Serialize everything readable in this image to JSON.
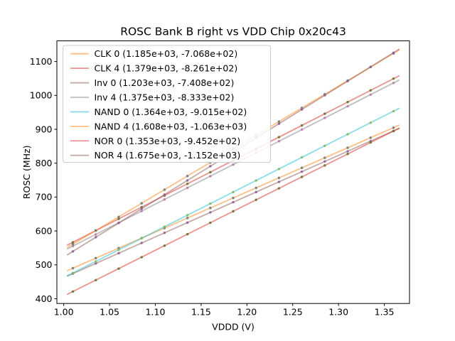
{
  "chart_data": {
    "type": "scatter",
    "title": "ROSC Bank B right vs VDD Chip 0x20c43",
    "xlabel": "VDDD (V)",
    "ylabel": "ROSC (MHz)",
    "xlim": [
      0.9925,
      1.3775
    ],
    "ylim": [
      386,
      1161
    ],
    "grid": false,
    "legend_position": "upper-left",
    "x_tick_labels": [
      "1.00",
      "1.05",
      "1.10",
      "1.15",
      "1.20",
      "1.25",
      "1.30",
      "1.35"
    ],
    "y_tick_labels": [
      "400",
      "500",
      "600",
      "700",
      "800",
      "900",
      "1000",
      "1100"
    ],
    "x": [
      1.01,
      1.035,
      1.06,
      1.085,
      1.11,
      1.135,
      1.16,
      1.185,
      1.21,
      1.235,
      1.26,
      1.285,
      1.31,
      1.335,
      1.36
    ],
    "fit_line_x_range": [
      1.004,
      1.366
    ],
    "line_alpha": 0.5,
    "dot_alpha": 0.9,
    "series": [
      {
        "name": "CLK 0",
        "label": "CLK 0 (1.185e+03, -7.068e+02)",
        "slope": 1185.0,
        "intercept": -706.8,
        "dot_color": "#1f77b4",
        "line_color": "#ff7f0e",
        "values": [
          490.1,
          519.7,
          549.3,
          578.9,
          608.6,
          638.2,
          667.8,
          697.4,
          727.1,
          756.7,
          786.3,
          815.9,
          845.6,
          875.2,
          904.8
        ]
      },
      {
        "name": "CLK 4",
        "label": "CLK 4 (1.379e+03, -8.261e+02)",
        "slope": 1379.0,
        "intercept": -826.1,
        "dot_color": "#2ca02c",
        "line_color": "#d62728",
        "values": [
          566.7,
          601.2,
          635.6,
          670.1,
          704.6,
          739.1,
          773.5,
          808.0,
          842.5,
          877.0,
          911.4,
          945.9,
          980.4,
          1014.9,
          1049.3
        ]
      },
      {
        "name": "Inv 0",
        "label": "Inv 0 (1.203e+03, -7.408e+02)",
        "slope": 1203.0,
        "intercept": -740.8,
        "dot_color": "#9467bd",
        "line_color": "#8c564b",
        "values": [
          474.2,
          504.3,
          534.4,
          564.5,
          594.5,
          624.6,
          654.7,
          684.8,
          714.8,
          744.9,
          775.0,
          805.1,
          835.1,
          865.2,
          895.3
        ]
      },
      {
        "name": "Inv 4",
        "label": "Inv 4 (1.375e+03, -8.333e+02)",
        "slope": 1375.0,
        "intercept": -833.3,
        "dot_color": "#e377c2",
        "line_color": "#7f7f7f",
        "values": [
          555.5,
          589.8,
          624.2,
          658.6,
          693.0,
          727.3,
          761.7,
          796.1,
          830.5,
          864.8,
          899.2,
          933.6,
          968.0,
          1002.3,
          1036.7
        ]
      },
      {
        "name": "NAND 0",
        "label": "NAND 0 (1.364e+03, -9.015e+02)",
        "slope": 1364.0,
        "intercept": -901.5,
        "dot_color": "#bcbd22",
        "line_color": "#17becf",
        "values": [
          476.1,
          510.2,
          544.3,
          578.4,
          612.5,
          646.6,
          680.7,
          714.8,
          748.9,
          783.0,
          817.1,
          851.2,
          885.3,
          919.4,
          953.5
        ]
      },
      {
        "name": "NAND 4",
        "label": "NAND 4 (1.608e+03, -1.063e+03)",
        "slope": 1608.0,
        "intercept": -1063.0,
        "dot_color": "#1f77b4",
        "line_color": "#ff7f0e",
        "values": [
          561.1,
          601.3,
          641.5,
          681.7,
          721.9,
          762.1,
          802.3,
          842.5,
          882.7,
          922.9,
          963.1,
          1003.3,
          1043.5,
          1083.7,
          1123.9
        ]
      },
      {
        "name": "NOR 0",
        "label": "NOR 0 (1.353e+03, -9.452e+02)",
        "slope": 1353.0,
        "intercept": -945.2,
        "dot_color": "#2ca02c",
        "line_color": "#d62728",
        "values": [
          421.3,
          455.2,
          489.0,
          522.8,
          556.6,
          590.5,
          624.3,
          658.1,
          691.9,
          725.8,
          759.6,
          793.4,
          827.2,
          861.1,
          894.9
        ]
      },
      {
        "name": "NOR 4",
        "label": "NOR 4 (1.675e+03, -1.152e+03)",
        "slope": 1675.0,
        "intercept": -1152.0,
        "dot_color": "#9467bd",
        "line_color": "#8c564b",
        "values": [
          539.8,
          581.6,
          623.5,
          665.4,
          707.3,
          749.1,
          791.0,
          832.9,
          874.8,
          916.6,
          958.5,
          1000.4,
          1042.3,
          1084.1,
          1125.8
        ]
      }
    ],
    "legend_frame_color": "#cccccc",
    "spine_color": "#000000"
  }
}
